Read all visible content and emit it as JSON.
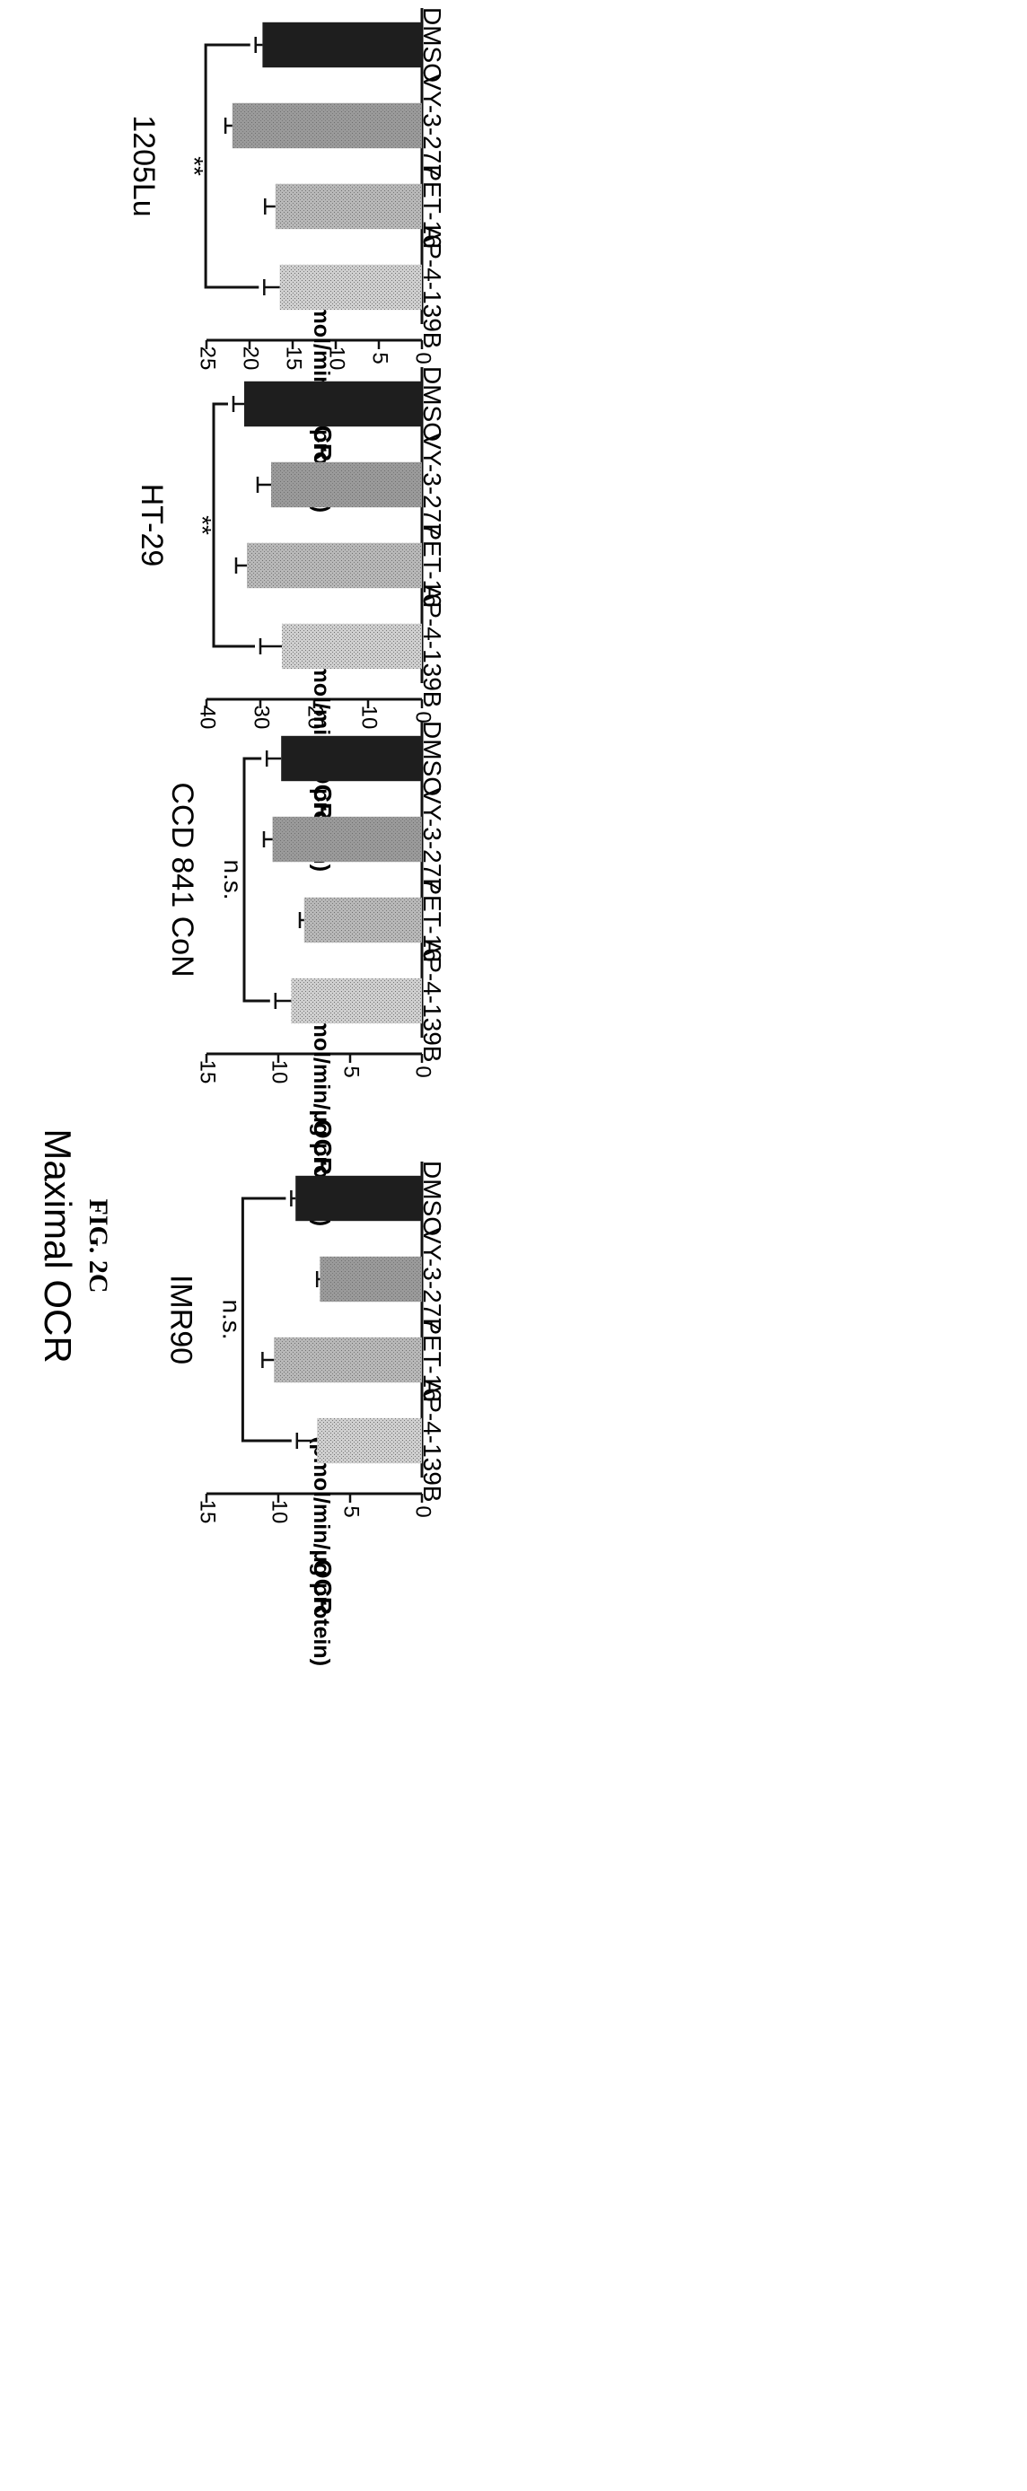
{
  "figure": {
    "label": "FIG. 2C",
    "title": "Maximal OCR"
  },
  "colors": {
    "bar_dark": "#1e1e1e",
    "bar_mid": "#9a9a9a",
    "bar_light": "#b8b8b8",
    "bar_lighter": "#cfcfcf",
    "ink": "#111111"
  },
  "chart_data": [
    {
      "type": "bar",
      "title": "1205Lu",
      "ylabel": "OCR",
      "ylabel_units": "(pmol/min/µg protein)",
      "categories": [
        "DMSO",
        "VY-3-277",
        "PET-16",
        "AP-4-139B"
      ],
      "values": [
        18.5,
        22,
        17,
        16.5
      ],
      "errors": [
        0.8,
        0.8,
        1.2,
        1.8
      ],
      "ylim": [
        0,
        25
      ],
      "yticks": [
        0,
        5,
        10,
        15,
        20,
        25
      ],
      "significance": "**"
    },
    {
      "type": "bar",
      "title": "HT-29",
      "ylabel": "OCR",
      "ylabel_units": "(pmol/min/µg protein)",
      "categories": [
        "DMSO",
        "VY-3-277",
        "PET-16",
        "AP-4-139B"
      ],
      "values": [
        33,
        28,
        32.5,
        26
      ],
      "errors": [
        2,
        2.5,
        2,
        4
      ],
      "ylim": [
        0,
        40
      ],
      "yticks": [
        0,
        10,
        20,
        30,
        40
      ],
      "significance": "**"
    },
    {
      "type": "bar",
      "title": "CCD 841 CoN",
      "ylabel": "OCR",
      "ylabel_units": "(pmol/min/µg protein)",
      "categories": [
        "DMSO",
        "VY-3-277",
        "PET-16",
        "AP-4-139B"
      ],
      "values": [
        9.8,
        10.4,
        8.2,
        9.1
      ],
      "errors": [
        1.0,
        0.6,
        0.3,
        1.1
      ],
      "ylim": [
        0,
        15
      ],
      "yticks": [
        0,
        5,
        10,
        15
      ],
      "significance": "n.s."
    },
    {
      "type": "bar",
      "title": "IMR90",
      "ylabel": "OCR",
      "ylabel_units": "(pmol/min/µg protein)",
      "categories": [
        "DMSO",
        "VY-3-277",
        "PET-16",
        "AP-4-139B"
      ],
      "values": [
        8.8,
        7.1,
        10.3,
        7.3
      ],
      "errors": [
        0.3,
        0.2,
        0.8,
        1.4
      ],
      "ylim": [
        0,
        15
      ],
      "yticks": [
        0,
        5,
        10,
        15
      ],
      "significance": "n.s."
    }
  ]
}
